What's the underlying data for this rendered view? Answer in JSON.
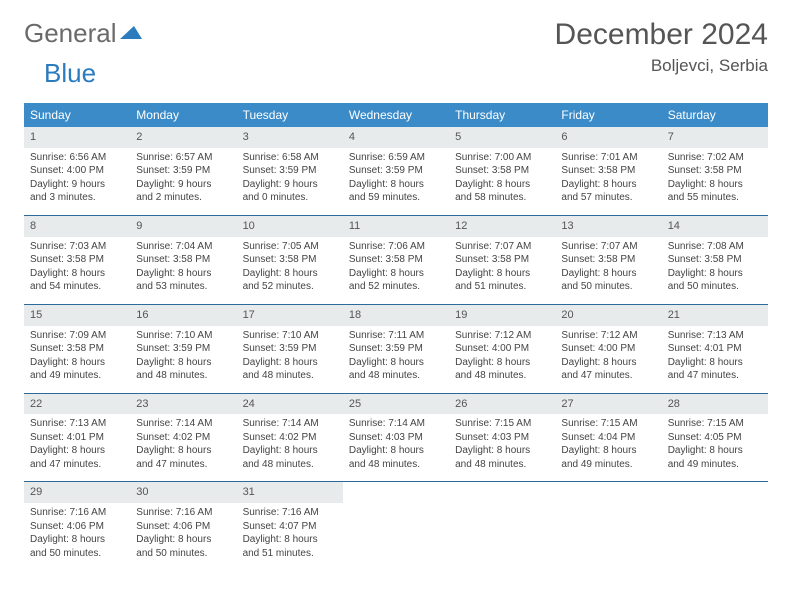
{
  "logo": {
    "text1": "General",
    "text2": "Blue",
    "triangle_color": "#2b7bbf"
  },
  "header": {
    "title": "December 2024",
    "location": "Boljevci, Serbia"
  },
  "colors": {
    "header_bg": "#3b8bc9",
    "header_text": "#ffffff",
    "daynum_bg": "#e8ebec",
    "row_divider": "#2b6a9a",
    "body_text": "#444444"
  },
  "day_headers": [
    "Sunday",
    "Monday",
    "Tuesday",
    "Wednesday",
    "Thursday",
    "Friday",
    "Saturday"
  ],
  "weeks": [
    [
      {
        "n": "1",
        "sr": "6:56 AM",
        "ss": "4:00 PM",
        "dh": "9",
        "dm": "3"
      },
      {
        "n": "2",
        "sr": "6:57 AM",
        "ss": "3:59 PM",
        "dh": "9",
        "dm": "2"
      },
      {
        "n": "3",
        "sr": "6:58 AM",
        "ss": "3:59 PM",
        "dh": "9",
        "dm": "0"
      },
      {
        "n": "4",
        "sr": "6:59 AM",
        "ss": "3:59 PM",
        "dh": "8",
        "dm": "59"
      },
      {
        "n": "5",
        "sr": "7:00 AM",
        "ss": "3:58 PM",
        "dh": "8",
        "dm": "58"
      },
      {
        "n": "6",
        "sr": "7:01 AM",
        "ss": "3:58 PM",
        "dh": "8",
        "dm": "57"
      },
      {
        "n": "7",
        "sr": "7:02 AM",
        "ss": "3:58 PM",
        "dh": "8",
        "dm": "55"
      }
    ],
    [
      {
        "n": "8",
        "sr": "7:03 AM",
        "ss": "3:58 PM",
        "dh": "8",
        "dm": "54"
      },
      {
        "n": "9",
        "sr": "7:04 AM",
        "ss": "3:58 PM",
        "dh": "8",
        "dm": "53"
      },
      {
        "n": "10",
        "sr": "7:05 AM",
        "ss": "3:58 PM",
        "dh": "8",
        "dm": "52"
      },
      {
        "n": "11",
        "sr": "7:06 AM",
        "ss": "3:58 PM",
        "dh": "8",
        "dm": "52"
      },
      {
        "n": "12",
        "sr": "7:07 AM",
        "ss": "3:58 PM",
        "dh": "8",
        "dm": "51"
      },
      {
        "n": "13",
        "sr": "7:07 AM",
        "ss": "3:58 PM",
        "dh": "8",
        "dm": "50"
      },
      {
        "n": "14",
        "sr": "7:08 AM",
        "ss": "3:58 PM",
        "dh": "8",
        "dm": "50"
      }
    ],
    [
      {
        "n": "15",
        "sr": "7:09 AM",
        "ss": "3:58 PM",
        "dh": "8",
        "dm": "49"
      },
      {
        "n": "16",
        "sr": "7:10 AM",
        "ss": "3:59 PM",
        "dh": "8",
        "dm": "48"
      },
      {
        "n": "17",
        "sr": "7:10 AM",
        "ss": "3:59 PM",
        "dh": "8",
        "dm": "48"
      },
      {
        "n": "18",
        "sr": "7:11 AM",
        "ss": "3:59 PM",
        "dh": "8",
        "dm": "48"
      },
      {
        "n": "19",
        "sr": "7:12 AM",
        "ss": "4:00 PM",
        "dh": "8",
        "dm": "48"
      },
      {
        "n": "20",
        "sr": "7:12 AM",
        "ss": "4:00 PM",
        "dh": "8",
        "dm": "47"
      },
      {
        "n": "21",
        "sr": "7:13 AM",
        "ss": "4:01 PM",
        "dh": "8",
        "dm": "47"
      }
    ],
    [
      {
        "n": "22",
        "sr": "7:13 AM",
        "ss": "4:01 PM",
        "dh": "8",
        "dm": "47"
      },
      {
        "n": "23",
        "sr": "7:14 AM",
        "ss": "4:02 PM",
        "dh": "8",
        "dm": "47"
      },
      {
        "n": "24",
        "sr": "7:14 AM",
        "ss": "4:02 PM",
        "dh": "8",
        "dm": "48"
      },
      {
        "n": "25",
        "sr": "7:14 AM",
        "ss": "4:03 PM",
        "dh": "8",
        "dm": "48"
      },
      {
        "n": "26",
        "sr": "7:15 AM",
        "ss": "4:03 PM",
        "dh": "8",
        "dm": "48"
      },
      {
        "n": "27",
        "sr": "7:15 AM",
        "ss": "4:04 PM",
        "dh": "8",
        "dm": "49"
      },
      {
        "n": "28",
        "sr": "7:15 AM",
        "ss": "4:05 PM",
        "dh": "8",
        "dm": "49"
      }
    ],
    [
      {
        "n": "29",
        "sr": "7:16 AM",
        "ss": "4:06 PM",
        "dh": "8",
        "dm": "50"
      },
      {
        "n": "30",
        "sr": "7:16 AM",
        "ss": "4:06 PM",
        "dh": "8",
        "dm": "50"
      },
      {
        "n": "31",
        "sr": "7:16 AM",
        "ss": "4:07 PM",
        "dh": "8",
        "dm": "51"
      },
      null,
      null,
      null,
      null
    ]
  ],
  "labels": {
    "sunrise": "Sunrise:",
    "sunset": "Sunset:",
    "daylight": "Daylight:",
    "hours": "hours",
    "and": "and",
    "minutes": "minutes."
  }
}
